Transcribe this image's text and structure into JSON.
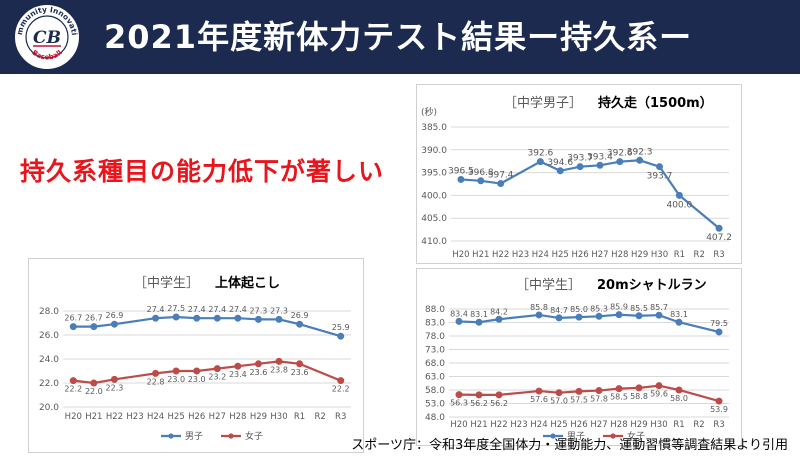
{
  "header": {
    "title": "2021年度新体力テスト結果ー持久系ー",
    "logo_text_top": "Community Innovation",
    "logo_monogram": "CB",
    "logo_text_bottom": "Baseball"
  },
  "headline": "持久系種目の能力低下が著しい",
  "source": "スポーツ庁：令和3年度全国体力・運動能力、運動習慣等調査結果より引用",
  "colors": {
    "male": "#4a7ebb",
    "female": "#be4b48",
    "header_bg": "#1b2a4e",
    "headline": "#e8161c"
  },
  "chart_data": [
    {
      "type": "line",
      "title_prefix": "［中学男子］",
      "title": "持久走（1500m）",
      "ylabel": "(秒)",
      "ylim": [
        410,
        385
      ],
      "yticks": [
        "385.0",
        "390.0",
        "395.0",
        "400.0",
        "405.0",
        "410.0"
      ],
      "inverted": true,
      "categories": [
        "H20",
        "H21",
        "H22",
        "H23",
        "H24",
        "H25",
        "H26",
        "H27",
        "H28",
        "H29",
        "H30",
        "R1",
        "R2",
        "R3"
      ],
      "series": [
        {
          "values": [
            396.5,
            396.8,
            397.4,
            null,
            392.6,
            394.6,
            393.7,
            393.4,
            392.6,
            392.3,
            393.7,
            400.0,
            null,
            407.2
          ]
        }
      ]
    },
    {
      "type": "line",
      "title_prefix": "［中学生］",
      "title": "上体起こし",
      "ylim": [
        20,
        28
      ],
      "yticks": [
        "20.0",
        "22.0",
        "24.0",
        "26.0",
        "28.0"
      ],
      "categories": [
        "H20",
        "H21",
        "H22",
        "H23",
        "H24",
        "H25",
        "H26",
        "H27",
        "H28",
        "H29",
        "H30",
        "R1",
        "R2",
        "R3"
      ],
      "series": [
        {
          "name": "男子",
          "values": [
            26.7,
            26.7,
            26.9,
            null,
            27.4,
            27.5,
            27.4,
            27.4,
            27.4,
            27.3,
            27.3,
            26.9,
            null,
            25.9
          ]
        },
        {
          "name": "女子",
          "values": [
            22.2,
            22.0,
            22.3,
            null,
            22.8,
            23.0,
            23.0,
            23.2,
            23.4,
            23.6,
            23.8,
            23.6,
            null,
            22.2
          ]
        }
      ],
      "legend": "bottom"
    },
    {
      "type": "line",
      "title_prefix": "［中学生］",
      "title": "20mシャトルラン",
      "ylim": [
        48,
        88
      ],
      "yticks": [
        "48.0",
        "53.0",
        "58.0",
        "63.0",
        "68.0",
        "73.0",
        "78.0",
        "83.0",
        "88.0"
      ],
      "categories": [
        "H20",
        "H21",
        "H22",
        "H23",
        "H24",
        "H25",
        "H26",
        "H27",
        "H28",
        "H29",
        "H30",
        "R1",
        "R2",
        "R3"
      ],
      "series": [
        {
          "name": "男子",
          "values": [
            83.4,
            83.1,
            84.2,
            null,
            85.8,
            84.7,
            85.0,
            85.3,
            85.9,
            85.5,
            85.7,
            83.1,
            null,
            79.5
          ]
        },
        {
          "name": "女子",
          "values": [
            56.3,
            56.2,
            56.2,
            null,
            57.6,
            57.0,
            57.5,
            57.8,
            58.5,
            58.8,
            59.6,
            58.0,
            null,
            53.9
          ]
        }
      ],
      "legend": "bottom"
    }
  ]
}
